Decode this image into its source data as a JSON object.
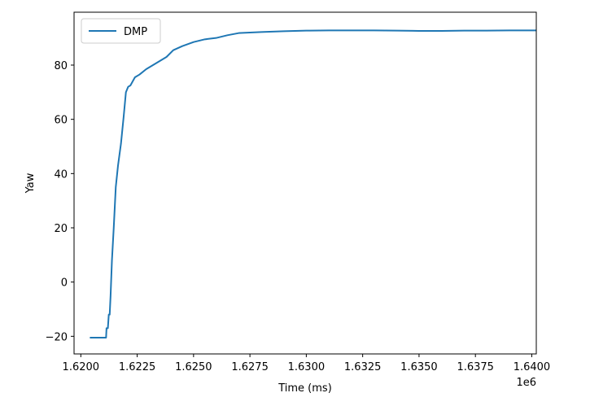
{
  "chart_data": {
    "type": "line",
    "title": "",
    "xlabel": "Time (ms)",
    "ylabel": "Yaw",
    "x_offset_label": "1e6",
    "xlim": [
      1.6197,
      1.6402
    ],
    "ylim": [
      -26.5,
      99.5
    ],
    "x_ticks": [
      1.62,
      1.6225,
      1.625,
      1.6275,
      1.63,
      1.6325,
      1.635,
      1.6375,
      1.64
    ],
    "x_tick_labels": [
      "1.6200",
      "1.6225",
      "1.6250",
      "1.6275",
      "1.6300",
      "1.6325",
      "1.6350",
      "1.6375",
      "1.6400"
    ],
    "y_ticks": [
      -20,
      0,
      20,
      40,
      60,
      80
    ],
    "y_tick_labels": [
      "−20",
      "0",
      "20",
      "40",
      "60",
      "80"
    ],
    "grid": false,
    "legend_position": "top-left",
    "series": [
      {
        "name": "DMP",
        "color": "#1f77b4",
        "x": [
          1.6204,
          1.62112,
          1.62114,
          1.6212,
          1.62124,
          1.62128,
          1.62132,
          1.62138,
          1.62146,
          1.62155,
          1.62165,
          1.62178,
          1.6219,
          1.622,
          1.6221,
          1.6222,
          1.6224,
          1.6226,
          1.6229,
          1.6232,
          1.6235,
          1.6238,
          1.6241,
          1.6245,
          1.625,
          1.6255,
          1.626,
          1.6265,
          1.627,
          1.6275,
          1.628,
          1.629,
          1.63,
          1.631,
          1.632,
          1.633,
          1.634,
          1.635,
          1.636,
          1.637,
          1.638,
          1.639,
          1.6402
        ],
        "y": [
          -20.5,
          -20.5,
          -17,
          -17,
          -12,
          -12,
          -5,
          8,
          20,
          35,
          43,
          51,
          61,
          70,
          72,
          72.5,
          75.5,
          76.5,
          78.5,
          80,
          81.5,
          83,
          85.5,
          87,
          88.5,
          89.5,
          90,
          91,
          91.8,
          92,
          92.2,
          92.5,
          92.7,
          92.8,
          92.8,
          92.8,
          92.7,
          92.6,
          92.6,
          92.7,
          92.7,
          92.8,
          92.8
        ]
      }
    ]
  }
}
